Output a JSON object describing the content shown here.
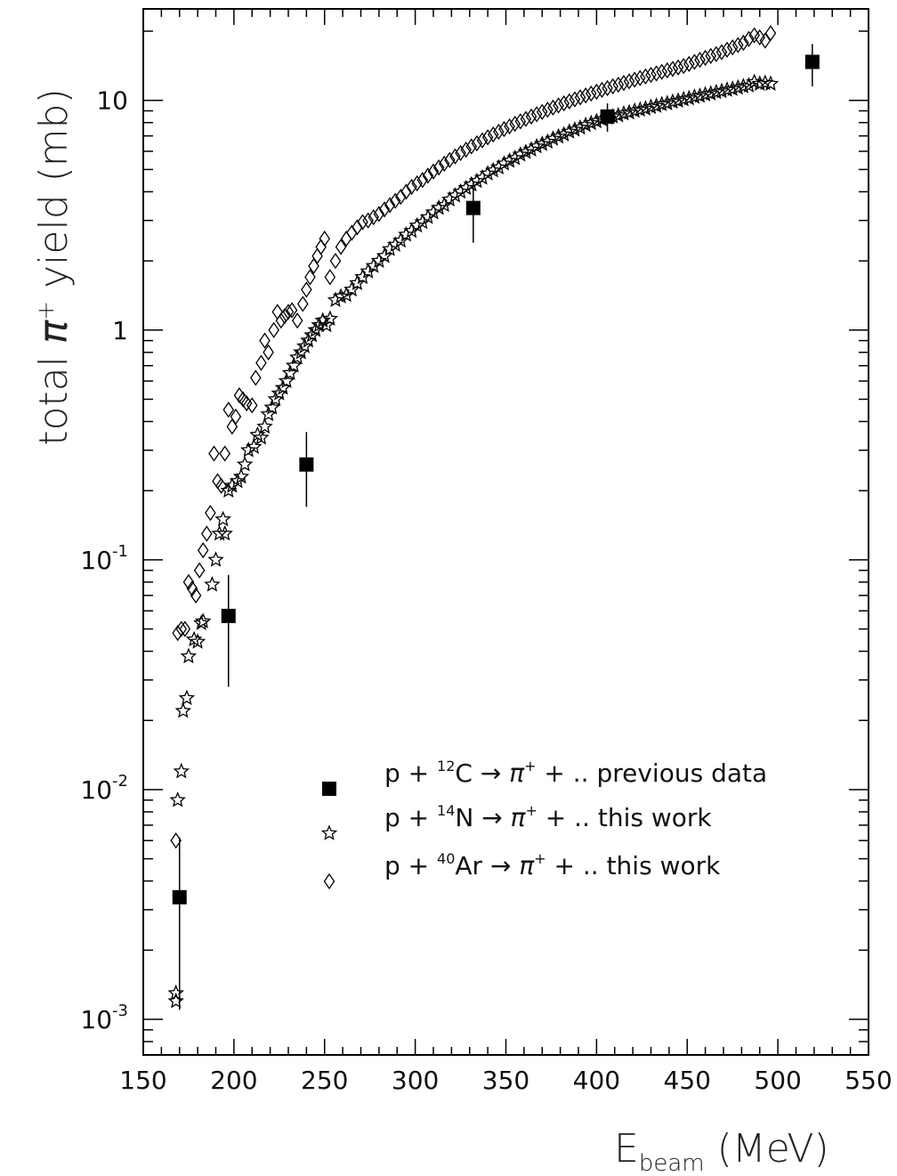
{
  "chart_data": {
    "type": "scatter",
    "xlabel": {
      "main": "E",
      "sub": "beam",
      "unit": "(MeV)"
    },
    "ylabel": {
      "pre": "total ",
      "symbol": "π",
      "sup": "+",
      "post": " yield (mb)"
    },
    "xlim": [
      150,
      550
    ],
    "ylim": [
      0.0007,
      25
    ],
    "yscale": "log",
    "x_ticks": [
      "150",
      "200",
      "250",
      "300",
      "350",
      "400",
      "450",
      "500",
      "550"
    ],
    "y_ticks": [
      {
        "value": 0.001,
        "base": "10",
        "exp": "-3"
      },
      {
        "value": 0.01,
        "base": "10",
        "exp": "-2"
      },
      {
        "value": 0.1,
        "base": "10",
        "exp": "-1"
      },
      {
        "value": 1,
        "base": "1",
        "exp": ""
      },
      {
        "value": 10,
        "base": "10",
        "exp": ""
      }
    ],
    "legend": [
      {
        "marker": "square",
        "p": "p",
        "plus": "+",
        "mass": "12",
        "elem": "C",
        "arrow": "→",
        "pi": "π",
        "pisup": "+",
        "rest": "+ ..",
        "note": "previous data"
      },
      {
        "marker": "star",
        "p": "p",
        "plus": "+",
        "mass": "14",
        "elem": "N",
        "arrow": "→",
        "pi": "π",
        "pisup": "+",
        "rest": "+ ..",
        "note": "this work"
      },
      {
        "marker": "diamond",
        "p": "p",
        "plus": "+",
        "mass": "40",
        "elem": "Ar",
        "arrow": "→",
        "pi": "π",
        "pisup": "+",
        "rest": "+ ..",
        "note": "this work"
      }
    ],
    "series": [
      {
        "marker": "square",
        "points": [
          {
            "x": 170,
            "y": 0.0034,
            "ylo": 0.0011,
            "yhi": 0.0062
          },
          {
            "x": 197,
            "y": 0.057,
            "ylo": 0.028,
            "yhi": 0.086
          },
          {
            "x": 240,
            "y": 0.26,
            "ylo": 0.17,
            "yhi": 0.36
          },
          {
            "x": 332,
            "y": 3.4,
            "ylo": 2.4,
            "yhi": 4.4
          },
          {
            "x": 406,
            "y": 8.5,
            "ylo": 7.3,
            "yhi": 9.7
          },
          {
            "x": 519,
            "y": 14.7,
            "ylo": 11.5,
            "yhi": 17.6
          }
        ]
      },
      {
        "marker": "star",
        "points": [
          {
            "x": 168,
            "y": 0.0013
          },
          {
            "x": 168,
            "y": 0.0012
          },
          {
            "x": 169,
            "y": 0.009
          },
          {
            "x": 171,
            "y": 0.012
          },
          {
            "x": 172,
            "y": 0.022
          },
          {
            "x": 174,
            "y": 0.025
          },
          {
            "x": 175,
            "y": 0.038
          },
          {
            "x": 178,
            "y": 0.045
          },
          {
            "x": 180,
            "y": 0.044
          },
          {
            "x": 182,
            "y": 0.053
          },
          {
            "x": 183,
            "y": 0.054
          },
          {
            "x": 188,
            "y": 0.078
          },
          {
            "x": 190,
            "y": 0.1
          },
          {
            "x": 192,
            "y": 0.13
          },
          {
            "x": 194,
            "y": 0.15
          },
          {
            "x": 195,
            "y": 0.13
          },
          {
            "x": 197,
            "y": 0.2
          },
          {
            "x": 199,
            "y": 0.21
          },
          {
            "x": 202,
            "y": 0.22
          },
          {
            "x": 204,
            "y": 0.23
          },
          {
            "x": 206,
            "y": 0.26
          },
          {
            "x": 208,
            "y": 0.3
          },
          {
            "x": 211,
            "y": 0.31
          },
          {
            "x": 213,
            "y": 0.35
          },
          {
            "x": 215,
            "y": 0.34
          },
          {
            "x": 217,
            "y": 0.38
          },
          {
            "x": 219,
            "y": 0.43
          },
          {
            "x": 221,
            "y": 0.46
          },
          {
            "x": 223,
            "y": 0.5
          },
          {
            "x": 225,
            "y": 0.53
          },
          {
            "x": 227,
            "y": 0.56
          },
          {
            "x": 229,
            "y": 0.6
          },
          {
            "x": 231,
            "y": 0.65
          },
          {
            "x": 233,
            "y": 0.7
          },
          {
            "x": 235,
            "y": 0.76
          },
          {
            "x": 237,
            "y": 0.8
          },
          {
            "x": 239,
            "y": 0.85
          },
          {
            "x": 241,
            "y": 0.9
          },
          {
            "x": 243,
            "y": 0.95
          },
          {
            "x": 245,
            "y": 1.0
          },
          {
            "x": 247,
            "y": 1.05
          },
          {
            "x": 249,
            "y": 1.1
          },
          {
            "x": 251,
            "y": 1.05
          },
          {
            "x": 253,
            "y": 1.12
          },
          {
            "x": 256,
            "y": 1.35
          },
          {
            "x": 259,
            "y": 1.4
          },
          {
            "x": 262,
            "y": 1.42
          },
          {
            "x": 265,
            "y": 1.5
          },
          {
            "x": 268,
            "y": 1.6
          },
          {
            "x": 271,
            "y": 1.7
          },
          {
            "x": 274,
            "y": 1.8
          },
          {
            "x": 277,
            "y": 1.9
          },
          {
            "x": 280,
            "y": 2.0
          },
          {
            "x": 283,
            "y": 2.1
          },
          {
            "x": 286,
            "y": 2.25
          },
          {
            "x": 289,
            "y": 2.35
          },
          {
            "x": 292,
            "y": 2.45
          },
          {
            "x": 295,
            "y": 2.6
          },
          {
            "x": 298,
            "y": 2.7
          },
          {
            "x": 301,
            "y": 2.85
          },
          {
            "x": 304,
            "y": 2.95
          },
          {
            "x": 307,
            "y": 3.1
          },
          {
            "x": 310,
            "y": 3.25
          },
          {
            "x": 313,
            "y": 3.4
          },
          {
            "x": 316,
            "y": 3.5
          },
          {
            "x": 319,
            "y": 3.7
          },
          {
            "x": 322,
            "y": 3.85
          },
          {
            "x": 325,
            "y": 4.0
          },
          {
            "x": 328,
            "y": 4.15
          },
          {
            "x": 331,
            "y": 4.3
          },
          {
            "x": 334,
            "y": 4.45
          },
          {
            "x": 337,
            "y": 4.6
          },
          {
            "x": 340,
            "y": 4.8
          },
          {
            "x": 343,
            "y": 4.95
          },
          {
            "x": 346,
            "y": 5.1
          },
          {
            "x": 349,
            "y": 5.3
          },
          {
            "x": 352,
            "y": 5.45
          },
          {
            "x": 355,
            "y": 5.6
          },
          {
            "x": 358,
            "y": 5.8
          },
          {
            "x": 361,
            "y": 5.95
          },
          {
            "x": 364,
            "y": 6.1
          },
          {
            "x": 367,
            "y": 6.3
          },
          {
            "x": 370,
            "y": 6.45
          },
          {
            "x": 373,
            "y": 6.6
          },
          {
            "x": 376,
            "y": 6.8
          },
          {
            "x": 379,
            "y": 6.95
          },
          {
            "x": 382,
            "y": 7.1
          },
          {
            "x": 385,
            "y": 7.3
          },
          {
            "x": 388,
            "y": 7.45
          },
          {
            "x": 391,
            "y": 7.6
          },
          {
            "x": 394,
            "y": 7.8
          },
          {
            "x": 397,
            "y": 7.95
          },
          {
            "x": 400,
            "y": 8.1
          },
          {
            "x": 403,
            "y": 8.25
          },
          {
            "x": 406,
            "y": 8.4
          },
          {
            "x": 409,
            "y": 8.5
          },
          {
            "x": 412,
            "y": 8.6
          },
          {
            "x": 415,
            "y": 8.75
          },
          {
            "x": 418,
            "y": 8.85
          },
          {
            "x": 421,
            "y": 9.0
          },
          {
            "x": 424,
            "y": 9.1
          },
          {
            "x": 427,
            "y": 9.2
          },
          {
            "x": 430,
            "y": 9.35
          },
          {
            "x": 433,
            "y": 9.45
          },
          {
            "x": 436,
            "y": 9.6
          },
          {
            "x": 439,
            "y": 9.7
          },
          {
            "x": 442,
            "y": 9.85
          },
          {
            "x": 445,
            "y": 9.95
          },
          {
            "x": 448,
            "y": 10.1
          },
          {
            "x": 451,
            "y": 10.2
          },
          {
            "x": 454,
            "y": 10.35
          },
          {
            "x": 457,
            "y": 10.45
          },
          {
            "x": 460,
            "y": 10.6
          },
          {
            "x": 463,
            "y": 10.7
          },
          {
            "x": 466,
            "y": 10.85
          },
          {
            "x": 469,
            "y": 10.95
          },
          {
            "x": 472,
            "y": 11.1
          },
          {
            "x": 475,
            "y": 11.2
          },
          {
            "x": 478,
            "y": 11.35
          },
          {
            "x": 481,
            "y": 11.5
          },
          {
            "x": 484,
            "y": 11.6
          },
          {
            "x": 487,
            "y": 12.0
          },
          {
            "x": 490,
            "y": 11.8
          },
          {
            "x": 493,
            "y": 11.9
          },
          {
            "x": 496,
            "y": 11.8
          }
        ]
      },
      {
        "marker": "diamond",
        "points": [
          {
            "x": 168,
            "y": 0.006
          },
          {
            "x": 169,
            "y": 0.048
          },
          {
            "x": 171,
            "y": 0.05
          },
          {
            "x": 173,
            "y": 0.05
          },
          {
            "x": 175,
            "y": 0.08
          },
          {
            "x": 177,
            "y": 0.075
          },
          {
            "x": 179,
            "y": 0.07
          },
          {
            "x": 181,
            "y": 0.09
          },
          {
            "x": 183,
            "y": 0.11
          },
          {
            "x": 185,
            "y": 0.13
          },
          {
            "x": 187,
            "y": 0.16
          },
          {
            "x": 189,
            "y": 0.29
          },
          {
            "x": 191,
            "y": 0.22
          },
          {
            "x": 193,
            "y": 0.21
          },
          {
            "x": 195,
            "y": 0.29
          },
          {
            "x": 197,
            "y": 0.45
          },
          {
            "x": 199,
            "y": 0.38
          },
          {
            "x": 201,
            "y": 0.42
          },
          {
            "x": 203,
            "y": 0.52
          },
          {
            "x": 205,
            "y": 0.5
          },
          {
            "x": 207,
            "y": 0.48
          },
          {
            "x": 210,
            "y": 0.47
          },
          {
            "x": 212,
            "y": 0.62
          },
          {
            "x": 215,
            "y": 0.72
          },
          {
            "x": 217,
            "y": 0.9
          },
          {
            "x": 219,
            "y": 0.8
          },
          {
            "x": 222,
            "y": 1.0
          },
          {
            "x": 224,
            "y": 1.2
          },
          {
            "x": 226,
            "y": 1.1
          },
          {
            "x": 228,
            "y": 1.15
          },
          {
            "x": 230,
            "y": 1.2
          },
          {
            "x": 232,
            "y": 1.22
          },
          {
            "x": 235,
            "y": 1.1
          },
          {
            "x": 238,
            "y": 1.3
          },
          {
            "x": 240,
            "y": 1.5
          },
          {
            "x": 242,
            "y": 1.7
          },
          {
            "x": 244,
            "y": 1.9
          },
          {
            "x": 246,
            "y": 2.1
          },
          {
            "x": 248,
            "y": 2.3
          },
          {
            "x": 250,
            "y": 2.5
          },
          {
            "x": 253,
            "y": 1.7
          },
          {
            "x": 256,
            "y": 2.0
          },
          {
            "x": 259,
            "y": 2.3
          },
          {
            "x": 262,
            "y": 2.5
          },
          {
            "x": 265,
            "y": 2.65
          },
          {
            "x": 268,
            "y": 2.8
          },
          {
            "x": 271,
            "y": 2.95
          },
          {
            "x": 274,
            "y": 3.0
          },
          {
            "x": 277,
            "y": 3.1
          },
          {
            "x": 280,
            "y": 3.2
          },
          {
            "x": 283,
            "y": 3.35
          },
          {
            "x": 286,
            "y": 3.5
          },
          {
            "x": 289,
            "y": 3.65
          },
          {
            "x": 292,
            "y": 3.8
          },
          {
            "x": 295,
            "y": 4.0
          },
          {
            "x": 298,
            "y": 4.2
          },
          {
            "x": 301,
            "y": 4.35
          },
          {
            "x": 304,
            "y": 4.5
          },
          {
            "x": 307,
            "y": 4.7
          },
          {
            "x": 310,
            "y": 4.9
          },
          {
            "x": 313,
            "y": 5.1
          },
          {
            "x": 316,
            "y": 5.3
          },
          {
            "x": 319,
            "y": 5.5
          },
          {
            "x": 322,
            "y": 5.7
          },
          {
            "x": 325,
            "y": 5.9
          },
          {
            "x": 328,
            "y": 6.1
          },
          {
            "x": 331,
            "y": 6.3
          },
          {
            "x": 334,
            "y": 6.5
          },
          {
            "x": 337,
            "y": 6.7
          },
          {
            "x": 340,
            "y": 6.9
          },
          {
            "x": 343,
            "y": 7.1
          },
          {
            "x": 346,
            "y": 7.3
          },
          {
            "x": 349,
            "y": 7.5
          },
          {
            "x": 352,
            "y": 7.7
          },
          {
            "x": 355,
            "y": 7.9
          },
          {
            "x": 358,
            "y": 8.1
          },
          {
            "x": 361,
            "y": 8.3
          },
          {
            "x": 364,
            "y": 8.5
          },
          {
            "x": 367,
            "y": 8.7
          },
          {
            "x": 370,
            "y": 8.9
          },
          {
            "x": 373,
            "y": 9.1
          },
          {
            "x": 376,
            "y": 9.3
          },
          {
            "x": 379,
            "y": 9.5
          },
          {
            "x": 382,
            "y": 9.7
          },
          {
            "x": 385,
            "y": 9.9
          },
          {
            "x": 388,
            "y": 10.1
          },
          {
            "x": 391,
            "y": 10.3
          },
          {
            "x": 394,
            "y": 10.5
          },
          {
            "x": 397,
            "y": 10.7
          },
          {
            "x": 400,
            "y": 10.9
          },
          {
            "x": 403,
            "y": 11.1
          },
          {
            "x": 406,
            "y": 11.3
          },
          {
            "x": 409,
            "y": 11.5
          },
          {
            "x": 412,
            "y": 11.7
          },
          {
            "x": 415,
            "y": 11.9
          },
          {
            "x": 418,
            "y": 12.1
          },
          {
            "x": 421,
            "y": 12.3
          },
          {
            "x": 424,
            "y": 12.5
          },
          {
            "x": 427,
            "y": 12.7
          },
          {
            "x": 430,
            "y": 12.9
          },
          {
            "x": 433,
            "y": 13.1
          },
          {
            "x": 436,
            "y": 13.3
          },
          {
            "x": 439,
            "y": 13.5
          },
          {
            "x": 442,
            "y": 13.7
          },
          {
            "x": 445,
            "y": 13.9
          },
          {
            "x": 448,
            "y": 14.1
          },
          {
            "x": 451,
            "y": 14.4
          },
          {
            "x": 454,
            "y": 14.7
          },
          {
            "x": 457,
            "y": 15.0
          },
          {
            "x": 460,
            "y": 15.3
          },
          {
            "x": 463,
            "y": 15.6
          },
          {
            "x": 466,
            "y": 15.9
          },
          {
            "x": 469,
            "y": 16.2
          },
          {
            "x": 472,
            "y": 16.6
          },
          {
            "x": 475,
            "y": 17.0
          },
          {
            "x": 478,
            "y": 17.4
          },
          {
            "x": 481,
            "y": 17.8
          },
          {
            "x": 484,
            "y": 18.5
          },
          {
            "x": 487,
            "y": 19.2
          },
          {
            "x": 490,
            "y": 18.8
          },
          {
            "x": 493,
            "y": 18.2
          },
          {
            "x": 496,
            "y": 19.6
          }
        ]
      }
    ]
  }
}
